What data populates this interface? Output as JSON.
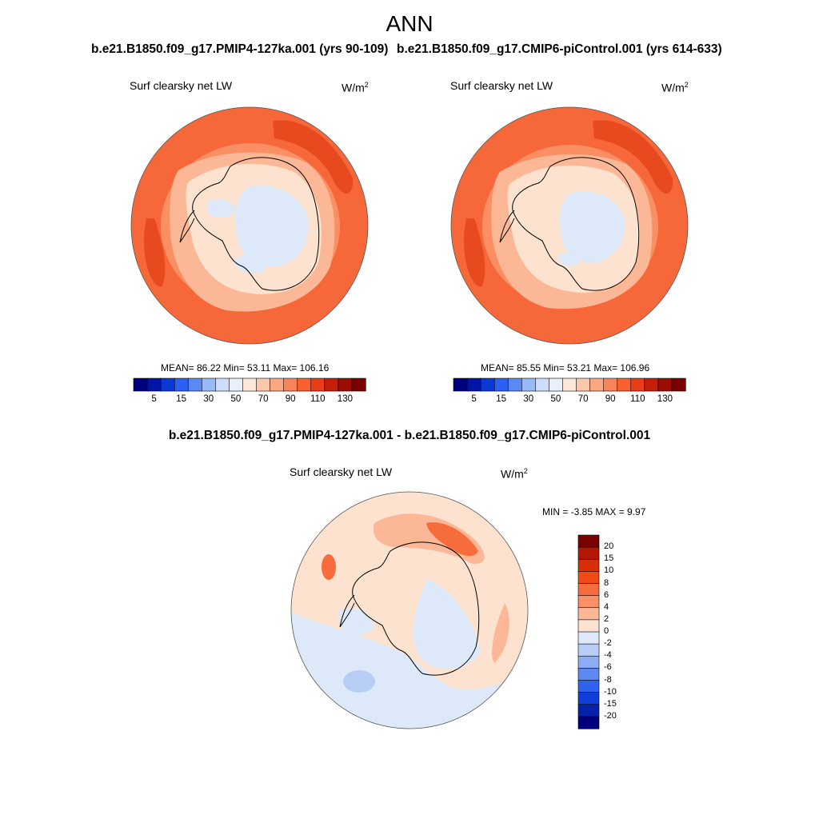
{
  "title": "ANN",
  "panels": [
    {
      "case_title": "b.e21.B1850.f09_g17.PMIP4-127ka.001 (yrs 90-109)",
      "variable": "Surf clearsky net LW",
      "units": "W/m",
      "units_exp": "2",
      "stats": "MEAN=  86.22  Min=  53.11  Max= 106.16"
    },
    {
      "case_title": "b.e21.B1850.f09_g17.CMIP6-piControl.001 (yrs 614-633)",
      "variable": "Surf clearsky net LW",
      "units": "W/m",
      "units_exp": "2",
      "stats": "MEAN=  85.55  Min=  53.21  Max= 106.96"
    }
  ],
  "diff_panel": {
    "case_title": "b.e21.B1850.f09_g17.PMIP4-127ka.001 - b.e21.B1850.f09_g17.CMIP6-piControl.001",
    "variable": "Surf clearsky net LW",
    "units": "W/m",
    "units_exp": "2",
    "stats": "MIN =  -3.85 MAX =   9.97"
  },
  "colorbar_abs": {
    "labels": [
      "5",
      "15",
      "30",
      "50",
      "70",
      "90",
      "110",
      "130"
    ],
    "colors": [
      "#00007f",
      "#0015a8",
      "#0a3ad6",
      "#2b60f0",
      "#5a88f5",
      "#9ab8f8",
      "#cddcf8",
      "#e8f0fa",
      "#fde7d8",
      "#fdc7aa",
      "#fca882",
      "#fa845a",
      "#f7602f",
      "#e83d18",
      "#c51f08",
      "#9c0c02",
      "#7a0000"
    ]
  },
  "colorbar_diff": {
    "labels": [
      "20",
      "15",
      "10",
      "8",
      "6",
      "4",
      "2",
      "0",
      "-2",
      "-4",
      "-6",
      "-8",
      "-10",
      "-15",
      "-20"
    ],
    "colors": [
      "#7a0000",
      "#b51602",
      "#d62e08",
      "#f24a14",
      "#f76c3c",
      "#fa9066",
      "#fcb896",
      "#fde3cf",
      "#dde9f8",
      "#b8cdf5",
      "#8cadf3",
      "#5f88f0",
      "#3162ec",
      "#0f3ed8",
      "#0522a8",
      "#00007f"
    ]
  },
  "map_colors": {
    "ocean_outer": "#f6673a",
    "ocean_band": "#fa8f63",
    "coast_band": "#fcb896",
    "ice_edge": "#fde3cf",
    "ice_interior": "#dde9f8",
    "diff_bg": "#fde3cf",
    "diff_neg": "#dde9f8",
    "diff_pos": "#fcb896",
    "diff_hot": "#f76c3c"
  }
}
